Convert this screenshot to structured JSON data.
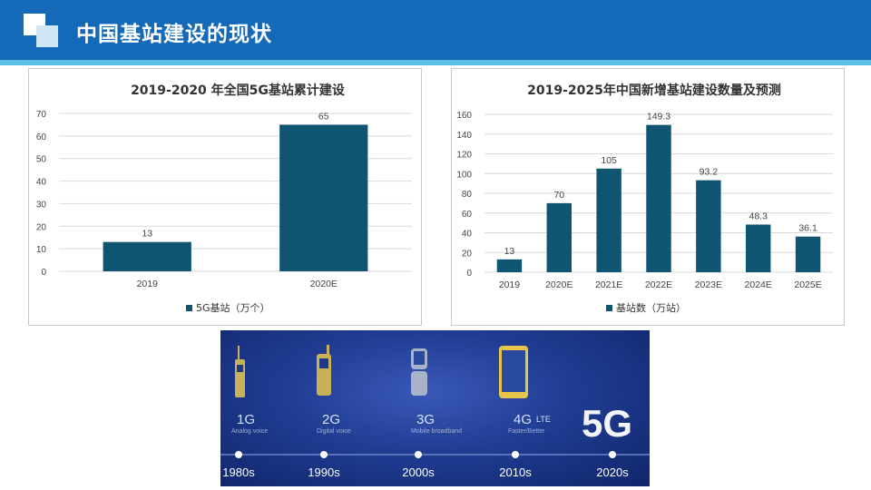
{
  "header": {
    "title": "中国基站建设的现状"
  },
  "colors": {
    "bar": "#0f5470",
    "header": "#1469b8",
    "accent": "#5bc0e8"
  },
  "chart_data": [
    {
      "type": "bar",
      "title": "2019-2020 年全国5G基站累计建设",
      "categories": [
        "2019",
        "2020E"
      ],
      "series": [
        {
          "name": "5G基站（万个）",
          "values": [
            13,
            65
          ]
        }
      ],
      "data_labels": [
        "13",
        "65"
      ],
      "ylim": [
        0,
        70
      ],
      "yticks": [
        0,
        10,
        20,
        30,
        40,
        50,
        60,
        70
      ],
      "xlabel": "",
      "ylabel": "",
      "legend": "bottom",
      "grid": true
    },
    {
      "type": "bar",
      "title": "2019-2025年中国新增基站建设数量及预测",
      "categories": [
        "2019",
        "2020E",
        "2021E",
        "2022E",
        "2023E",
        "2024E",
        "2025E"
      ],
      "series": [
        {
          "name": "基站数（万站）",
          "values": [
            13,
            70,
            105,
            149.3,
            93.2,
            48.3,
            36.1
          ]
        }
      ],
      "data_labels": [
        "13",
        "70",
        "105",
        "149.3",
        "93.2",
        "48.3",
        "36.1"
      ],
      "ylim": [
        0,
        160
      ],
      "yticks": [
        0,
        20,
        40,
        60,
        80,
        100,
        120,
        140,
        160
      ],
      "xlabel": "",
      "ylabel": "",
      "legend": "bottom",
      "grid": true
    }
  ],
  "banner": {
    "generations": [
      {
        "gen": "1G",
        "desc": "Analog voice",
        "decade": "1980s",
        "icon": "brick-phone-icon"
      },
      {
        "gen": "2G",
        "desc": "Digital voice",
        "decade": "1990s",
        "icon": "feature-phone-icon"
      },
      {
        "gen": "3G",
        "desc": "Mobile broadband",
        "decade": "2000s",
        "icon": "flip-phone-icon"
      },
      {
        "gen": "4G",
        "badge": "LTE",
        "desc": "Faster/Better",
        "decade": "2010s",
        "icon": "smartphone-icon"
      }
    ],
    "big_label": "5G",
    "last_decade": "2020s"
  }
}
